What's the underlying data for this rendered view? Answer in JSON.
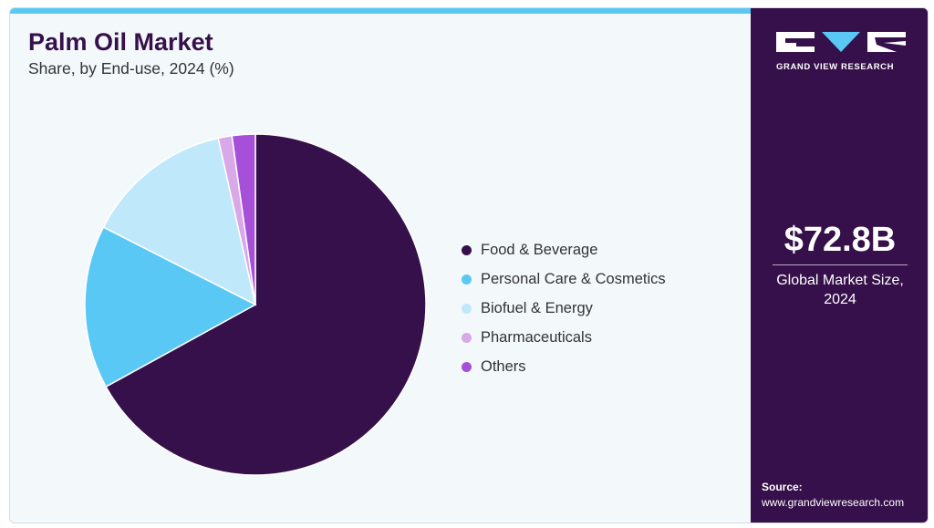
{
  "header": {
    "title": "Palm Oil Market",
    "subtitle": "Share, by End-use, 2024 (%)"
  },
  "chart_data": {
    "type": "pie",
    "title": "Palm Oil Market",
    "subtitle": "Share, by End-use, 2024 (%)",
    "categories": [
      "Food & Beverage",
      "Personal Care & Cosmetics",
      "Biofuel & Energy",
      "Pharmaceuticals",
      "Others"
    ],
    "values": [
      67,
      15.5,
      14,
      1.3,
      2.2
    ],
    "colors": [
      "#36104a",
      "#5ac8f5",
      "#bfe9fb",
      "#d8a8e8",
      "#a64fd8"
    ],
    "legend_position": "right"
  },
  "sidebar": {
    "brand": "GRAND VIEW RESEARCH",
    "market_value": "$72.8B",
    "market_value_label": "Global Market Size, 2024",
    "source_label": "Source:",
    "source_url": "www.grandviewresearch.com"
  }
}
